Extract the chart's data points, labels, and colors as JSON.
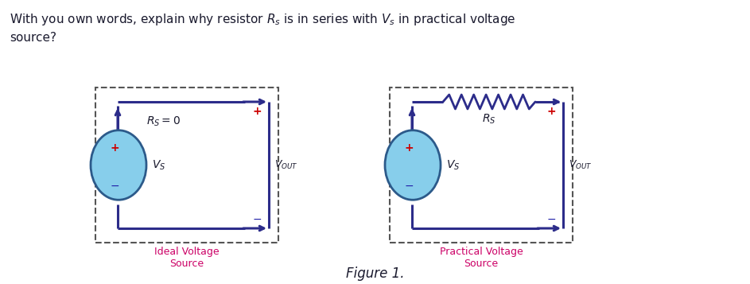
{
  "title_text": "With you own words, explain why resistor $R_s$ is in series with $V_s$ in practical voltage\nsource?",
  "figure_caption": "Figure 1.",
  "left_label": "Ideal Voltage\nSource",
  "right_label": "Practical Voltage\nSource",
  "label_color": "#cc0066",
  "circuit_color": "#1a1a2e",
  "wire_color": "#2c2c8a",
  "box_dash_color": "#555555",
  "source_fill": "#87ceeb",
  "source_edge": "#2c5a8a",
  "plus_color": "#cc0000",
  "minus_color": "#2222aa",
  "rs_zero_text": "$R_S = 0$",
  "rs_text": "$R_S$",
  "vs_text": "$V_S$",
  "vout_text": "$V_{OUT}$",
  "background": "#ffffff",
  "fig_width": 9.43,
  "fig_height": 3.57
}
